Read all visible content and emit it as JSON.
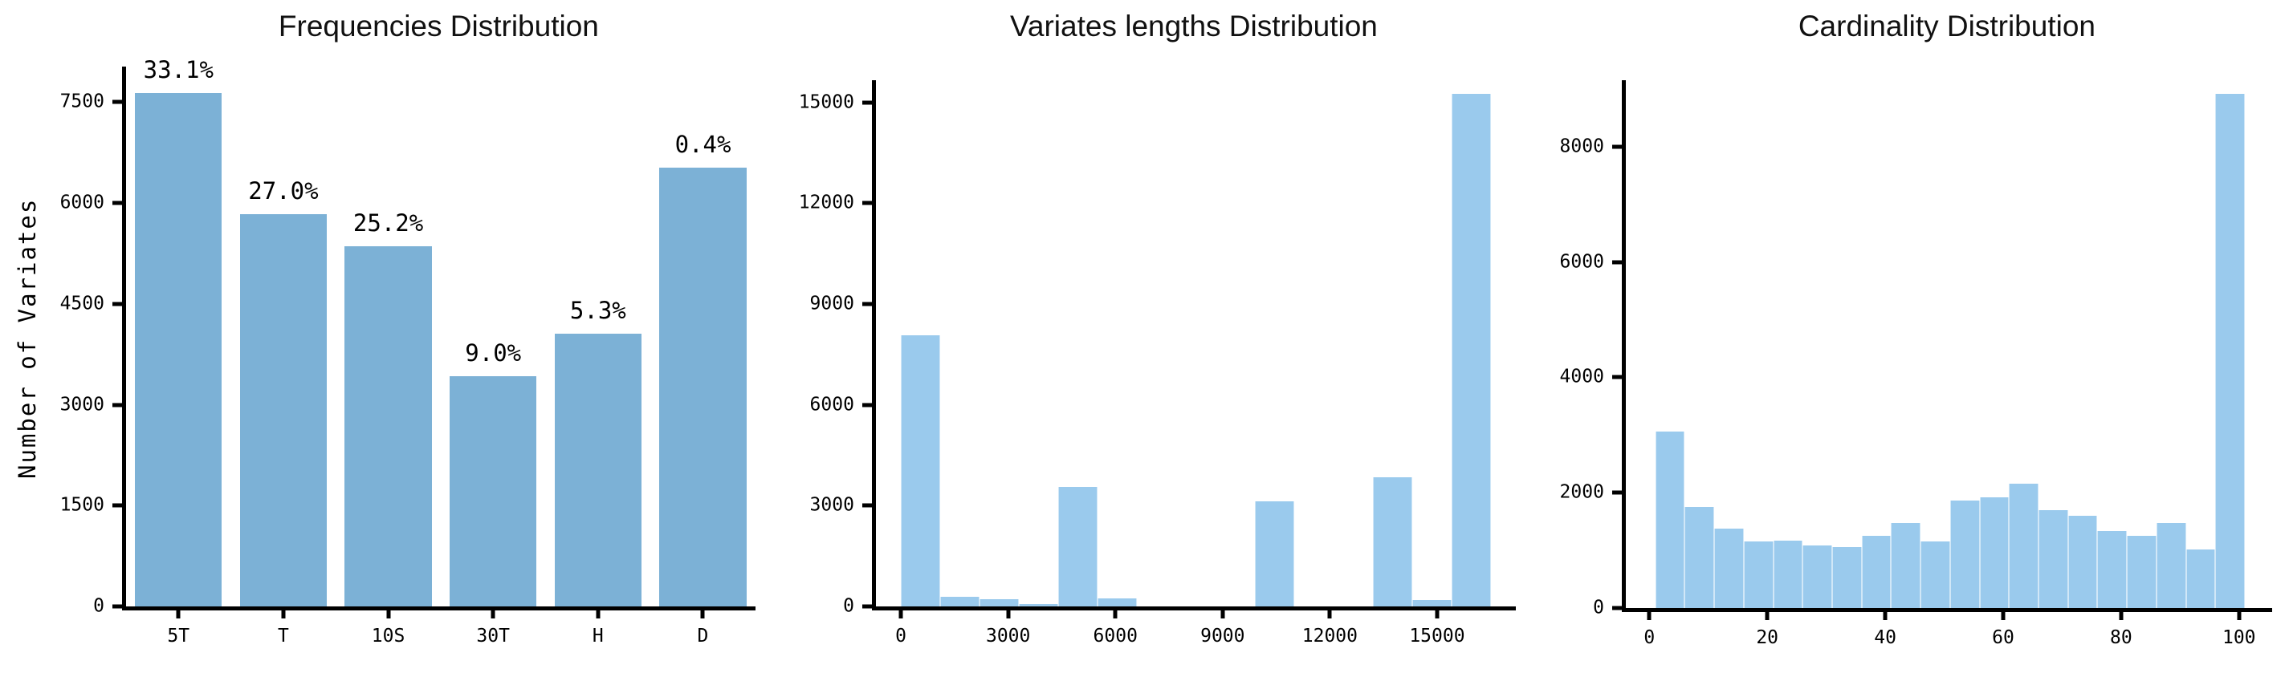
{
  "figure": {
    "background": "#ffffff",
    "axis_color": "#000000",
    "text_color": "#000000"
  },
  "chart_data": [
    {
      "type": "bar",
      "title": "Frequencies Distribution",
      "ylabel": "Number of Variates",
      "categories": [
        "5T",
        "T",
        "10S",
        "30T",
        "H",
        "D"
      ],
      "values": [
        7640,
        5830,
        5360,
        3420,
        4060,
        6530
      ],
      "bar_labels": [
        "33.1%",
        "27.0%",
        "25.2%",
        "9.0%",
        "5.3%",
        "0.4%"
      ],
      "yticks": [
        0,
        1500,
        3000,
        4500,
        6000,
        7500
      ],
      "ylim": [
        0,
        8030
      ],
      "bar_color": "#7cb1d6",
      "grid": false,
      "legend": false
    },
    {
      "type": "histogram",
      "title": "Variates lengths Distribution",
      "bin_edges": [
        0,
        1100,
        2200,
        3300,
        4400,
        5500,
        6600,
        7700,
        8800,
        9900,
        11000,
        12100,
        13200,
        14300,
        15400,
        16500
      ],
      "counts": [
        8060,
        280,
        220,
        80,
        3560,
        240,
        0,
        0,
        0,
        3130,
        0,
        0,
        3850,
        180,
        15250
      ],
      "xticks": [
        0,
        3000,
        6000,
        9000,
        12000,
        15000
      ],
      "yticks": [
        0,
        3000,
        6000,
        9000,
        12000,
        15000
      ],
      "ylim": [
        0,
        15660
      ],
      "xlim": [
        -700,
        17200
      ],
      "bar_color": "#9acaed",
      "grid": false,
      "legend": false
    },
    {
      "type": "histogram",
      "title": "Cardinality Distribution",
      "bin_edges": [
        1,
        6,
        11,
        16,
        21,
        26,
        31,
        36,
        41,
        46,
        51,
        56,
        61,
        66,
        71,
        76,
        81,
        86,
        91,
        96,
        101
      ],
      "counts": [
        3060,
        1750,
        1380,
        1150,
        1170,
        1080,
        1050,
        1250,
        1480,
        1160,
        1870,
        1920,
        2160,
        1700,
        1600,
        1330,
        1250,
        1480,
        1020,
        8920
      ],
      "xticks": [
        0,
        20,
        40,
        60,
        80,
        100
      ],
      "yticks": [
        0,
        2000,
        4000,
        6000,
        8000
      ],
      "ylim": [
        0,
        9150
      ],
      "xlim": [
        -4,
        105.6
      ],
      "bar_color": "#9acaed",
      "grid": false,
      "legend": false
    }
  ]
}
